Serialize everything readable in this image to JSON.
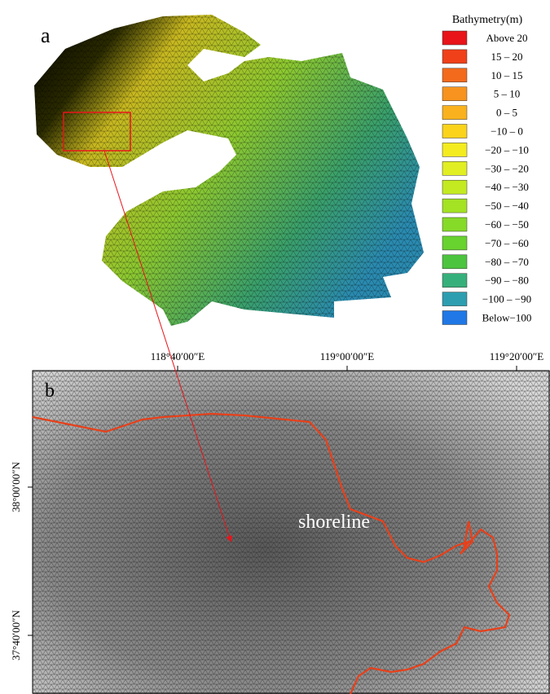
{
  "panel_a": {
    "label": "a",
    "legend": {
      "title": "Bathymetry(m)",
      "items": [
        {
          "label": "Above 20",
          "color": "#e8141a"
        },
        {
          "label": "15 – 20",
          "color": "#f0401a"
        },
        {
          "label": "10 – 15",
          "color": "#f46a1c"
        },
        {
          "label": "5 – 10",
          "color": "#f7931e"
        },
        {
          "label": "0 – 5",
          "color": "#f9b21d"
        },
        {
          "label": "−10 – 0",
          "color": "#fbd31b"
        },
        {
          "label": "−20 – −10",
          "color": "#f4ec1f"
        },
        {
          "label": "−30 – −20",
          "color": "#e1ee22"
        },
        {
          "label": "−40 – −30",
          "color": "#c4ea22"
        },
        {
          "label": "−50 – −40",
          "color": "#a4e224"
        },
        {
          "label": "−60 – −50",
          "color": "#86da28"
        },
        {
          "label": "−70 – −60",
          "color": "#68d22e"
        },
        {
          "label": "−80 – −70",
          "color": "#4cc43e"
        },
        {
          "label": "−90 – −80",
          "color": "#36b07a"
        },
        {
          "label": "−100 – −90",
          "color": "#2c9eb0"
        },
        {
          "label": "Below−100",
          "color": "#1f78e6"
        }
      ]
    }
  },
  "panel_b": {
    "label": "b",
    "annotation": "shoreline",
    "top_ticks": [
      "118°40′00″E",
      "119°00′00″E",
      "119°20′00″E"
    ],
    "left_ticks": [
      "38°00′00″N",
      "37°40′00″N"
    ]
  }
}
